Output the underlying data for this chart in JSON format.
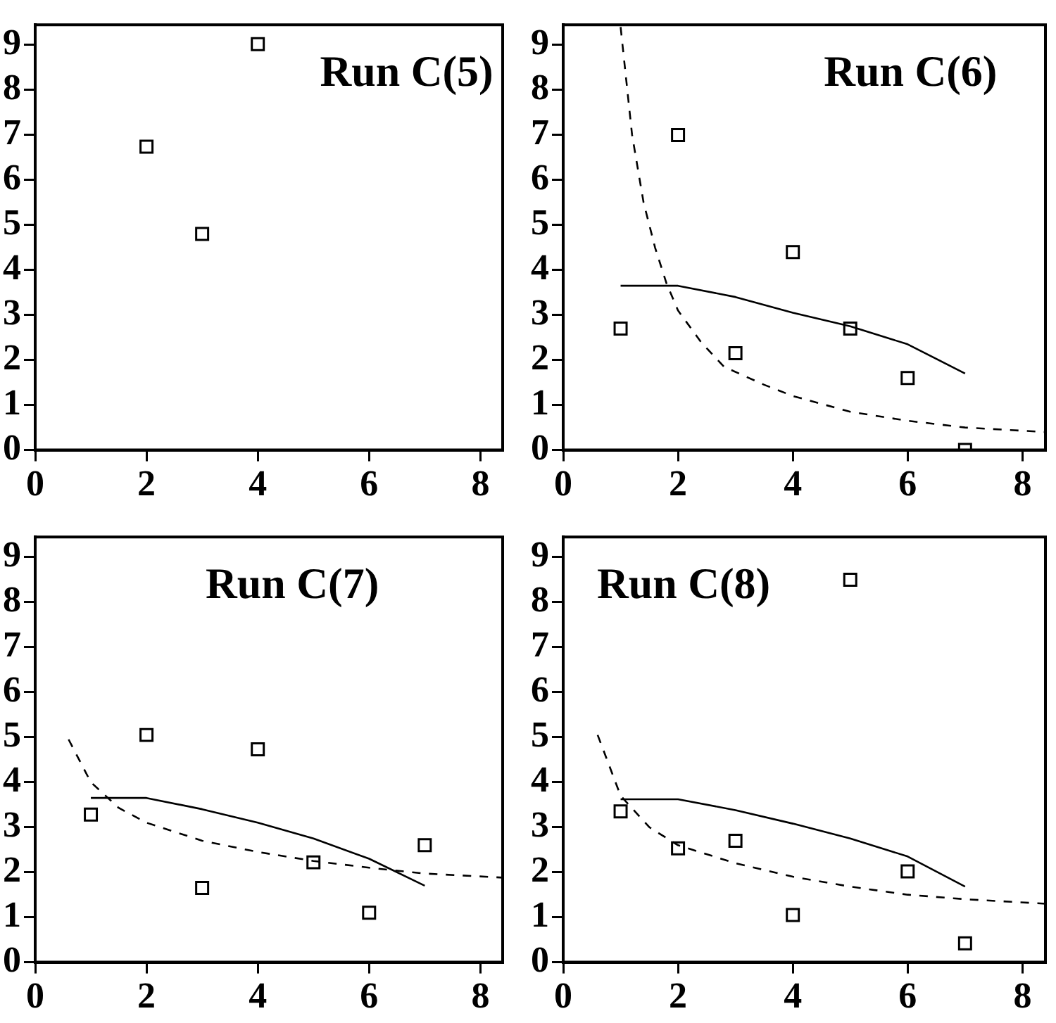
{
  "chart_data": [
    {
      "type": "scatter",
      "title": "Run C(5)",
      "xlim": [
        0,
        8.4
      ],
      "ylim": [
        0,
        9.45
      ],
      "xticks": [
        0,
        2,
        4,
        6,
        8
      ],
      "yticks": [
        0,
        1,
        2,
        3,
        4,
        5,
        6,
        7,
        8,
        9
      ],
      "grid": false,
      "legend": false,
      "series": [
        {
          "marker": "square",
          "color": "#000000",
          "x": [
            2,
            3,
            4
          ],
          "values": [
            6.74,
            4.8,
            9.02
          ]
        }
      ]
    },
    {
      "type": "scatter",
      "title": "Run C(6)",
      "xlim": [
        0,
        8.4
      ],
      "ylim": [
        0,
        9.45
      ],
      "xticks": [
        0,
        2,
        4,
        6,
        8
      ],
      "yticks": [
        0,
        1,
        2,
        3,
        4,
        5,
        6,
        7,
        8,
        9
      ],
      "grid": false,
      "legend": false,
      "series": [
        {
          "marker": "square",
          "color": "#000000",
          "x": [
            1,
            2,
            3,
            4,
            5,
            6,
            7
          ],
          "values": [
            2.7,
            7.0,
            2.15,
            4.4,
            2.7,
            1.6,
            0.0
          ]
        },
        {
          "type": "line",
          "marker": "none",
          "color": "#000000",
          "line_style": "solid",
          "x": [
            1,
            2,
            3,
            4,
            5,
            6,
            7
          ],
          "values": [
            3.65,
            3.65,
            3.4,
            3.05,
            2.75,
            2.35,
            1.7
          ]
        },
        {
          "type": "line",
          "marker": "none",
          "color": "#000000",
          "line_style": "dashed",
          "x": [
            1,
            1.2,
            1.4,
            1.6,
            1.8,
            2,
            2.4,
            2.8,
            3.5,
            4,
            5,
            6,
            7,
            8.4
          ],
          "values": [
            9.4,
            7.0,
            5.5,
            4.5,
            3.7,
            3.1,
            2.4,
            1.85,
            1.45,
            1.2,
            0.85,
            0.65,
            0.5,
            0.4
          ]
        }
      ]
    },
    {
      "type": "scatter",
      "title": "Run C(7)",
      "xlim": [
        0,
        8.4
      ],
      "ylim": [
        0,
        9.45
      ],
      "xticks": [
        0,
        2,
        4,
        6,
        8
      ],
      "yticks": [
        0,
        1,
        2,
        3,
        4,
        5,
        6,
        7,
        8,
        9
      ],
      "grid": false,
      "legend": false,
      "series": [
        {
          "marker": "square",
          "color": "#000000",
          "x": [
            1,
            2,
            3,
            4,
            5,
            6,
            7
          ],
          "values": [
            3.28,
            5.05,
            1.65,
            4.73,
            2.22,
            1.1,
            2.6
          ]
        },
        {
          "type": "line",
          "marker": "none",
          "color": "#000000",
          "line_style": "solid",
          "x": [
            1,
            2,
            3,
            4,
            5,
            6,
            7
          ],
          "values": [
            3.65,
            3.65,
            3.4,
            3.1,
            2.75,
            2.3,
            1.7
          ]
        },
        {
          "type": "line",
          "marker": "none",
          "color": "#000000",
          "line_style": "dashed",
          "x": [
            0.6,
            1,
            1.5,
            2,
            3,
            4,
            5,
            6,
            7,
            8.4
          ],
          "values": [
            4.95,
            4.0,
            3.43,
            3.1,
            2.7,
            2.45,
            2.25,
            2.1,
            1.97,
            1.88
          ]
        }
      ]
    },
    {
      "type": "scatter",
      "title": "Run C(8)",
      "xlim": [
        0,
        8.4
      ],
      "ylim": [
        0,
        9.45
      ],
      "xticks": [
        0,
        2,
        4,
        6,
        8
      ],
      "yticks": [
        0,
        1,
        2,
        3,
        4,
        5,
        6,
        7,
        8,
        9
      ],
      "grid": false,
      "legend": false,
      "series": [
        {
          "marker": "square",
          "color": "#000000",
          "x": [
            1,
            2,
            3,
            4,
            5,
            6,
            7
          ],
          "values": [
            3.35,
            2.53,
            2.7,
            1.05,
            8.5,
            2.02,
            0.42
          ]
        },
        {
          "type": "line",
          "marker": "none",
          "color": "#000000",
          "line_style": "solid",
          "x": [
            1,
            2,
            3,
            4,
            5,
            6,
            7
          ],
          "values": [
            3.62,
            3.62,
            3.38,
            3.08,
            2.75,
            2.35,
            1.68
          ]
        },
        {
          "type": "line",
          "marker": "none",
          "color": "#000000",
          "line_style": "dashed",
          "x": [
            0.6,
            1,
            1.5,
            2,
            3,
            4,
            5,
            6,
            7,
            8.4
          ],
          "values": [
            5.05,
            3.7,
            3.0,
            2.6,
            2.2,
            1.9,
            1.68,
            1.5,
            1.4,
            1.3
          ]
        }
      ]
    }
  ]
}
